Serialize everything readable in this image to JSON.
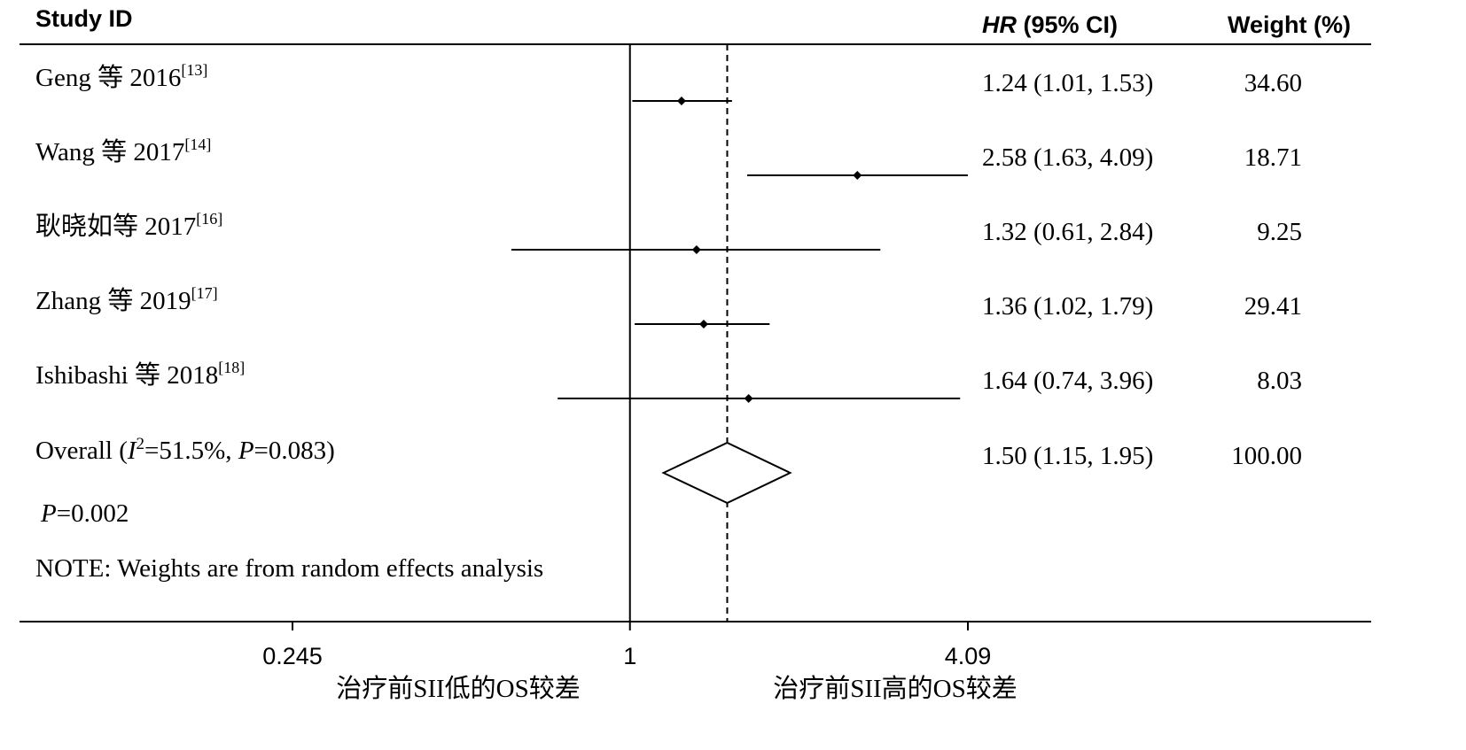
{
  "chart_data": {
    "type": "forest",
    "headers": {
      "study": "Study ID",
      "hr_italic": "HR",
      "hr_rest": " (95% CI)",
      "weight": "Weight (%)"
    },
    "studies": [
      {
        "name": "Geng 等 2016",
        "ref": "[13]",
        "hr": 1.24,
        "lo": 1.01,
        "hi": 1.53,
        "ci_text": "1.24 (1.01, 1.53)",
        "weight": "34.60"
      },
      {
        "name": "Wang 等 2017",
        "ref": "[14]",
        "hr": 2.58,
        "lo": 1.63,
        "hi": 4.09,
        "ci_text": "2.58 (1.63, 4.09)",
        "weight": "18.71"
      },
      {
        "name": "耿晓如等 2017",
        "ref": "[16]",
        "hr": 1.32,
        "lo": 0.61,
        "hi": 2.84,
        "ci_text": "1.32 (0.61, 2.84)",
        "weight": "9.25"
      },
      {
        "name": "Zhang 等 2019",
        "ref": "[17]",
        "hr": 1.36,
        "lo": 1.02,
        "hi": 1.79,
        "ci_text": "1.36 (1.02, 1.79)",
        "weight": "29.41"
      },
      {
        "name": "Ishibashi 等 2018",
        "ref": "[18]",
        "hr": 1.64,
        "lo": 0.74,
        "hi": 3.96,
        "ci_text": "1.64 (0.74, 3.96)",
        "weight": "8.03"
      }
    ],
    "overall": {
      "hr": 1.5,
      "lo": 1.15,
      "hi": 1.95,
      "ci_text": "1.50 (1.15, 1.95)",
      "weight": "100.00",
      "label_prefix": "Overall  (",
      "i2_letter": "I",
      "i2_sup": "2",
      "i2_value": "=51.5%, ",
      "p_letter": "P",
      "p_value": "=0.083)"
    },
    "p_overall": {
      "letter": "P",
      "value": "=0.002"
    },
    "note": "NOTE: Weights are from random effects analysis",
    "x_scale": "log",
    "x_ticks": [
      {
        "value": 0.245,
        "label": "0.245"
      },
      {
        "value": 1,
        "label": "1"
      },
      {
        "value": 4.09,
        "label": "4.09"
      }
    ],
    "xlim": [
      0.245,
      4.09
    ],
    "reference_line": 1,
    "pooled_line": 1.5,
    "x_labels": {
      "left": "治疗前SII低的OS较差",
      "right": "治疗前SII高的OS较差"
    }
  }
}
